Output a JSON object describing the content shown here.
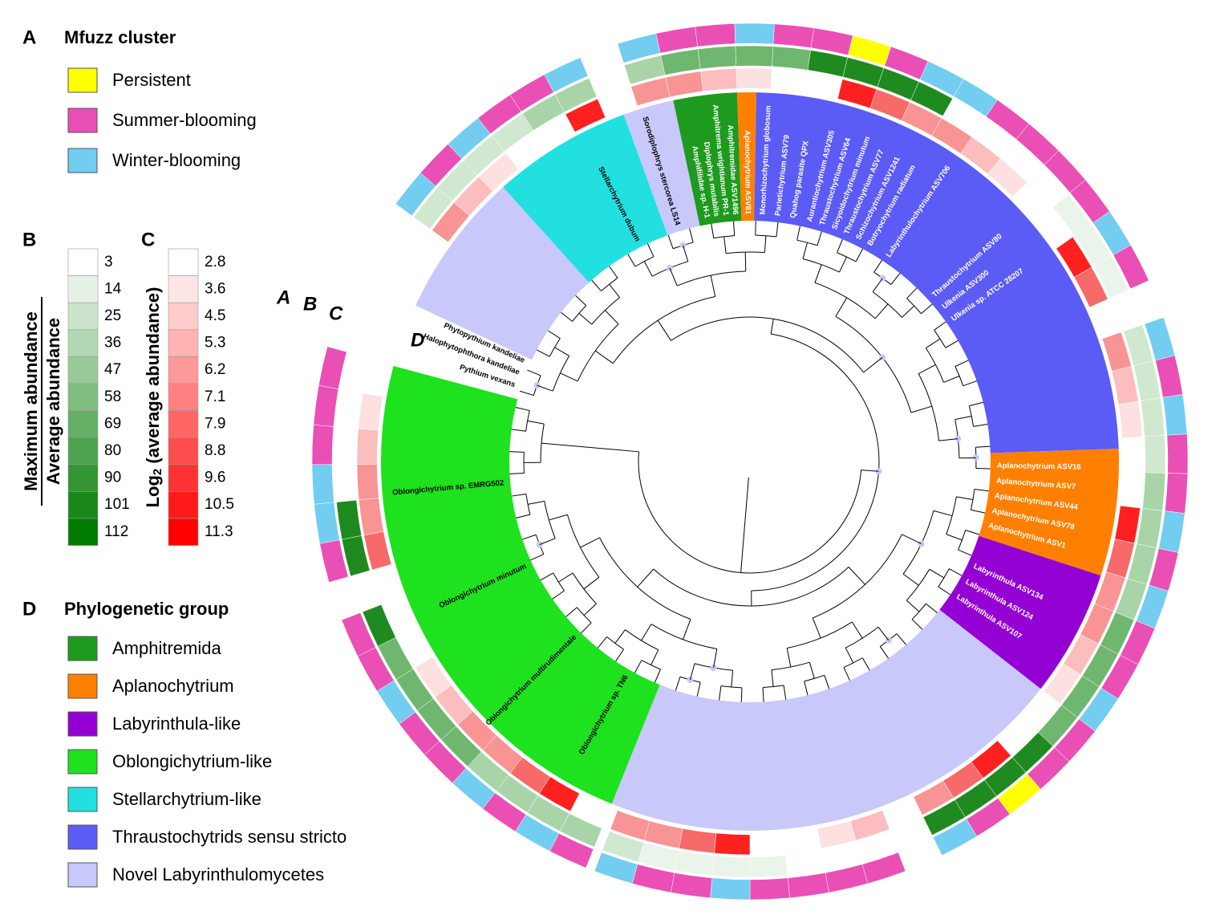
{
  "panel_letters": {
    "a": "A",
    "b": "B",
    "c": "C",
    "d": "D"
  },
  "mfuzz_legend": {
    "title": "Mfuzz cluster",
    "items": [
      {
        "name": "Persistent",
        "color": "#ffff00"
      },
      {
        "name": "Summer-blooming",
        "color": "#e94fb5"
      },
      {
        "name": "Winter-blooming",
        "color": "#72cdf0"
      }
    ]
  },
  "scale_b": {
    "title_top": "Maximum abundance",
    "title_bottom": "Average abundance",
    "color": "#007a00",
    "values": [
      3,
      14,
      25,
      36,
      47,
      58,
      69,
      80,
      90,
      101,
      112
    ]
  },
  "scale_c": {
    "title": {
      "log": "Log",
      "sub": "2",
      "rest": " (average abundance)"
    },
    "color": "#ff0000",
    "values": [
      2.8,
      3.6,
      4.5,
      5.3,
      6.2,
      7.1,
      7.9,
      8.8,
      9.6,
      10.5,
      11.3
    ]
  },
  "group_legend": {
    "title": "Phylogenetic group",
    "items": [
      {
        "name": "Amphitremida",
        "color": "#1e9a1e"
      },
      {
        "name": "Aplanochytrium",
        "color": "#ff8000"
      },
      {
        "name": "Labyrinthula-like",
        "color": "#9400d3"
      },
      {
        "name": "Oblongichytrium-like",
        "color": "#1de21d"
      },
      {
        "name": "Stellarchytrium-like",
        "color": "#22e0e0"
      },
      {
        "name": "Thraustochytrids sensu stricto",
        "color": "#5b5bf5"
      },
      {
        "name": "Novel Labyrinthulomycetes",
        "color": "#c8c8fa"
      }
    ]
  },
  "ring_labels": {
    "a": "A",
    "b": "B",
    "c": "C",
    "d": "D"
  },
  "tip_labels": [
    "Pythium vexans",
    "Halophytophthora kandeliae",
    "Phytopythium kandeliae",
    "Stellarchytrium dubum",
    "Sorodiplophrys stercorea LS14",
    "Amphifilidae sp. H-1",
    "Diplophrys mutabilis",
    "Amphitrema wrightianum PR-1",
    "Amphitremidae ASV1496",
    "Aplanochytrium ASV81",
    "Monorhizochytrium globosum",
    "Parietichytrium ASV79",
    "Quahog parasite QPX",
    "Aurantiochytrium ASV305",
    "Thraustochytrium ASV64",
    "Sicyoidochytrium minutum",
    "Thraustochytrium ASV77",
    "Schizochytrium ASV1241",
    "Botryochytrium radiatum",
    "Labyrinthulochytrium ASV706",
    "Thraustochytrium ASV80",
    "Ulkenia ASV300",
    "Ulkenia sp. ATCC 28207",
    "Aplanochytrium ASV16",
    "Aplanochytrium ASV7",
    "Aplanochytrium ASV44",
    "Aplanochytrium ASV78",
    "Aplanochytrium ASV1",
    "Labyrinthula ASV134",
    "Labyrinthula ASV124",
    "Labyrinthula ASV107",
    "Oblongichytrium sp. TN6",
    "Oblongichytrium multirudimentale",
    "Oblongichytrium minutum",
    "Oblongichytrium sp. EMRG502"
  ]
}
